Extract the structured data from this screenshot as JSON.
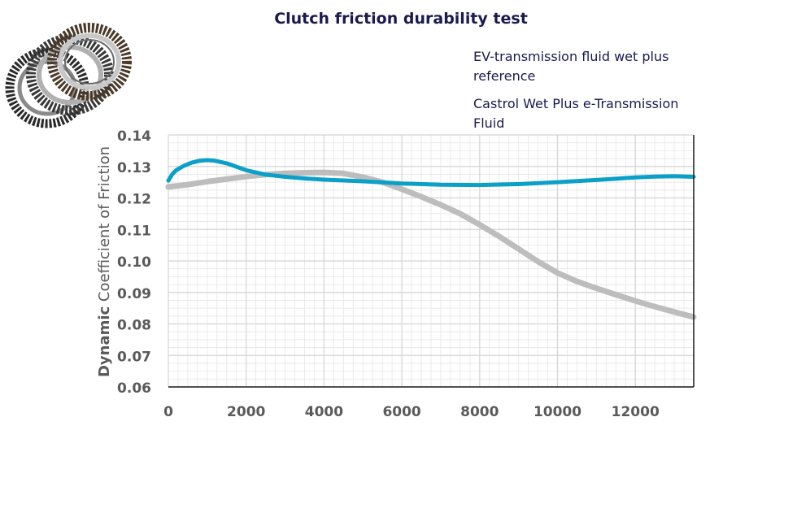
{
  "chart_data": {
    "type": "line",
    "title": "Clutch friction durability test",
    "xlabel": "",
    "ylabel_bold": "Dynamic",
    "ylabel_rest": " Coefficient of Friction",
    "xlim": [
      0,
      13500
    ],
    "ylim": [
      0.06,
      0.14
    ],
    "x_ticks": [
      0,
      2000,
      4000,
      6000,
      8000,
      10000,
      12000
    ],
    "x_tick_labels": [
      "0",
      "2000",
      "4000",
      "6000",
      "8000",
      "10000",
      "12000"
    ],
    "y_ticks": [
      0.14,
      0.13,
      0.12,
      0.11,
      0.1,
      0.09,
      0.08,
      0.07,
      0.06
    ],
    "y_tick_labels": [
      "0.14",
      "0.13",
      "0.12",
      "0.11",
      "0.10",
      "0.09",
      "0.08",
      "0.07",
      "0.06"
    ],
    "grid": true,
    "legend_position": "top-right",
    "series": [
      {
        "name": "EV-transmission fluid wet plus reference",
        "color": "#bdbdbd",
        "x": [
          0,
          500,
          1000,
          1500,
          2000,
          2500,
          3000,
          3500,
          4000,
          4500,
          5000,
          5500,
          6000,
          6500,
          7000,
          7500,
          8000,
          8500,
          9000,
          9500,
          10000,
          10500,
          11000,
          11500,
          12000,
          12500,
          13000,
          13500
        ],
        "values": [
          0.1235,
          0.1242,
          0.1252,
          0.126,
          0.1268,
          0.1274,
          0.1278,
          0.128,
          0.1281,
          0.1278,
          0.1266,
          0.125,
          0.1228,
          0.1204,
          0.1178,
          0.115,
          0.1115,
          0.1078,
          0.1038,
          0.0998,
          0.0962,
          0.0935,
          0.0913,
          0.0893,
          0.0873,
          0.0855,
          0.0838,
          0.0822
        ]
      },
      {
        "name": "Castrol Wet Plus e-Transmission Fluid",
        "color": "#0aa0c8",
        "x": [
          0,
          100,
          200,
          400,
          600,
          800,
          1000,
          1200,
          1500,
          2000,
          2500,
          3000,
          3500,
          4000,
          5000,
          6000,
          7000,
          8000,
          9000,
          10000,
          11000,
          12000,
          12500,
          13000,
          13500
        ],
        "values": [
          0.1255,
          0.1275,
          0.1288,
          0.1302,
          0.1312,
          0.1318,
          0.132,
          0.1318,
          0.131,
          0.1288,
          0.1274,
          0.1267,
          0.1262,
          0.1258,
          0.1253,
          0.1246,
          0.1242,
          0.1241,
          0.1244,
          0.125,
          0.1257,
          0.1265,
          0.1268,
          0.1269,
          0.1267
        ]
      }
    ]
  },
  "colors": {
    "title": "#1a1a4e",
    "legend_text": "#1a1a4e",
    "axis_text": "#5a5a5a",
    "grid": "#e6e6e6",
    "axis_line": "#1a1a1a"
  },
  "image": {
    "icon": "clutch-plates-icon"
  }
}
